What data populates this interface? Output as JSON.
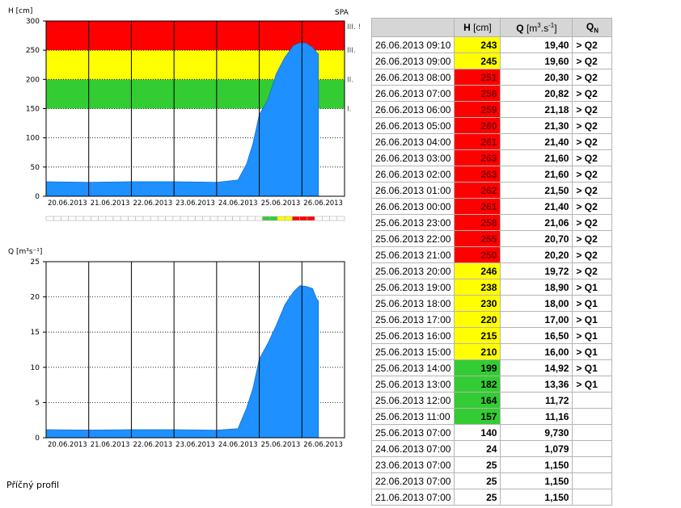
{
  "chart_data": [
    {
      "type": "area",
      "ylabel": "H [cm]",
      "ylim": [
        0,
        300
      ],
      "yticks": [
        0,
        50,
        100,
        150,
        200,
        250,
        300
      ],
      "xticks": [
        "20.06.2013",
        "21.06.2013",
        "22.06.2013",
        "23.06.2013",
        "24.06.2013",
        "25.06.2013",
        "26.06.2013"
      ],
      "bands": [
        {
          "from": 150,
          "to": 200,
          "color": "#33cc33",
          "label": "I."
        },
        {
          "from": 200,
          "to": 250,
          "color": "#ffff00",
          "label": "II."
        },
        {
          "from": 250,
          "to": 300,
          "color": "#ff0000",
          "label": "III."
        }
      ],
      "top_band_label": "III. !",
      "corner_label": "SPA",
      "series_color": "#1e90ff",
      "x_days": [
        0,
        1,
        2,
        3,
        4,
        4.5,
        4.7,
        4.85,
        5.0,
        5.2,
        5.4,
        5.6,
        5.8,
        5.95,
        6.1,
        6.25,
        6.35,
        6.39
      ],
      "values": [
        25,
        24,
        25,
        25,
        24,
        28,
        55,
        90,
        140,
        165,
        210,
        238,
        258,
        263,
        262,
        255,
        246,
        243
      ]
    },
    {
      "type": "area",
      "ylabel": "Q [m³s⁻¹]",
      "ylim": [
        0,
        25
      ],
      "yticks": [
        0,
        5,
        10,
        15,
        20,
        25
      ],
      "xticks": [
        "20.06.2013",
        "21.06.2013",
        "22.06.2013",
        "23.06.2013",
        "24.06.2013",
        "25.06.2013",
        "26.06.2013"
      ],
      "series_color": "#1e90ff",
      "x_days": [
        0,
        1,
        2,
        3,
        4,
        4.5,
        4.7,
        4.85,
        5.0,
        5.2,
        5.4,
        5.6,
        5.8,
        5.95,
        6.1,
        6.25,
        6.35,
        6.39
      ],
      "values": [
        1.15,
        1.1,
        1.15,
        1.15,
        1.08,
        1.3,
        4.2,
        7.0,
        11.2,
        13.4,
        16.0,
        18.9,
        20.7,
        21.6,
        21.5,
        21.2,
        19.7,
        19.4
      ]
    }
  ],
  "table": {
    "headers": [
      "",
      "H [cm]",
      "Q [m3.s-1]",
      "QN"
    ],
    "rows": [
      {
        "time": "26.06.2013 09:10",
        "h": "243",
        "q": "19,40",
        "n": "> Q2",
        "c": "yellow"
      },
      {
        "time": "26.06.2013 09:00",
        "h": "245",
        "q": "19,60",
        "n": "> Q2",
        "c": "yellow"
      },
      {
        "time": "26.06.2013 08:00",
        "h": "251",
        "q": "20,30",
        "n": "> Q2",
        "c": "red"
      },
      {
        "time": "26.06.2013 07:00",
        "h": "256",
        "q": "20,82",
        "n": "> Q2",
        "c": "red"
      },
      {
        "time": "26.06.2013 06:00",
        "h": "259",
        "q": "21,18",
        "n": "> Q2",
        "c": "red"
      },
      {
        "time": "26.06.2013 05:00",
        "h": "260",
        "q": "21,30",
        "n": "> Q2",
        "c": "red"
      },
      {
        "time": "26.06.2013 04:00",
        "h": "261",
        "q": "21,40",
        "n": "> Q2",
        "c": "red"
      },
      {
        "time": "26.06.2013 03:00",
        "h": "263",
        "q": "21,60",
        "n": "> Q2",
        "c": "red"
      },
      {
        "time": "26.06.2013 02:00",
        "h": "263",
        "q": "21,60",
        "n": "> Q2",
        "c": "red"
      },
      {
        "time": "26.06.2013 01:00",
        "h": "262",
        "q": "21,50",
        "n": "> Q2",
        "c": "red"
      },
      {
        "time": "26.06.2013 00:00",
        "h": "261",
        "q": "21,40",
        "n": "> Q2",
        "c": "red"
      },
      {
        "time": "25.06.2013 23:00",
        "h": "258",
        "q": "21,06",
        "n": "> Q2",
        "c": "red"
      },
      {
        "time": "25.06.2013 22:00",
        "h": "255",
        "q": "20,70",
        "n": "> Q2",
        "c": "red"
      },
      {
        "time": "25.06.2013 21:00",
        "h": "250",
        "q": "20,20",
        "n": "> Q2",
        "c": "red"
      },
      {
        "time": "25.06.2013 20:00",
        "h": "246",
        "q": "19,72",
        "n": "> Q2",
        "c": "yellow"
      },
      {
        "time": "25.06.2013 19:00",
        "h": "238",
        "q": "18,90",
        "n": "> Q1",
        "c": "yellow"
      },
      {
        "time": "25.06.2013 18:00",
        "h": "230",
        "q": "18,00",
        "n": "> Q1",
        "c": "yellow"
      },
      {
        "time": "25.06.2013 17:00",
        "h": "220",
        "q": "17,00",
        "n": "> Q1",
        "c": "yellow"
      },
      {
        "time": "25.06.2013 16:00",
        "h": "215",
        "q": "16,50",
        "n": "> Q1",
        "c": "yellow"
      },
      {
        "time": "25.06.2013 15:00",
        "h": "210",
        "q": "16,00",
        "n": "> Q1",
        "c": "yellow"
      },
      {
        "time": "25.06.2013 14:00",
        "h": "199",
        "q": "14,92",
        "n": "> Q1",
        "c": "green"
      },
      {
        "time": "25.06.2013 13:00",
        "h": "182",
        "q": "13,36",
        "n": "> Q1",
        "c": "green"
      },
      {
        "time": "25.06.2013 12:00",
        "h": "164",
        "q": "11,72",
        "n": "",
        "c": "green"
      },
      {
        "time": "25.06.2013 11:00",
        "h": "157",
        "q": "11,16",
        "n": "",
        "c": "green"
      },
      {
        "time": "25.06.2013 07:00",
        "h": "140",
        "q": "9,730",
        "n": "",
        "c": ""
      },
      {
        "time": "24.06.2013 07:00",
        "h": "24",
        "q": "1,079",
        "n": "",
        "c": ""
      },
      {
        "time": "23.06.2013 07:00",
        "h": "25",
        "q": "1,150",
        "n": "",
        "c": ""
      },
      {
        "time": "22.06.2013 07:00",
        "h": "25",
        "q": "1,150",
        "n": "",
        "c": ""
      },
      {
        "time": "21.06.2013 07:00",
        "h": "25",
        "q": "1,150",
        "n": "",
        "c": ""
      }
    ]
  },
  "footer_label": "Příčný profil"
}
